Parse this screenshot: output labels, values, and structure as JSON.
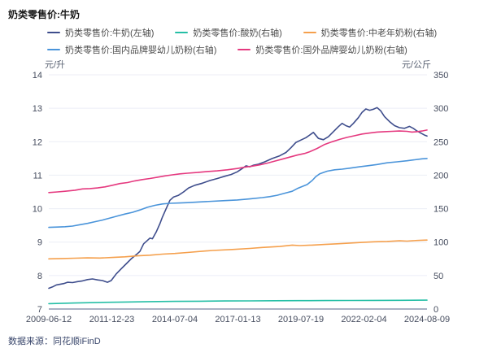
{
  "header": {
    "title": "奶类零售价:牛奶"
  },
  "footer": {
    "source": "数据来源：同花顺iFinD"
  },
  "colors": {
    "grid": "#eceef6",
    "axis_line": "#aab1c4",
    "tick_text": "#454c5e"
  },
  "chart_data": {
    "type": "line",
    "title": "奶类零售价:牛奶",
    "x_range": [
      2009.45,
      2024.6
    ],
    "x_tick_labels": [
      "2009-06-12",
      "2011-12-23",
      "2014-07-04",
      "2017-01-13",
      "2019-07-19",
      "2022-02-04",
      "2024-08-09"
    ],
    "left_axis": {
      "label": "元/升",
      "min": 7,
      "max": 14,
      "ticks": [
        14,
        13,
        12,
        11,
        10,
        9,
        8,
        7
      ]
    },
    "right_axis": {
      "label": "元/公斤",
      "min": 0,
      "max": 350,
      "ticks": [
        350,
        300,
        250,
        200,
        150,
        100,
        50,
        0
      ]
    },
    "grid": true,
    "legend_position": "top",
    "series": [
      {
        "name": "奶类零售价:牛奶(左轴)",
        "axis": "left",
        "color": "#3e4d8c",
        "points": [
          [
            2009.45,
            7.62
          ],
          [
            2009.6,
            7.66
          ],
          [
            2009.75,
            7.72
          ],
          [
            2009.9,
            7.74
          ],
          [
            2010.05,
            7.76
          ],
          [
            2010.2,
            7.8
          ],
          [
            2010.4,
            7.79
          ],
          [
            2010.6,
            7.82
          ],
          [
            2010.8,
            7.84
          ],
          [
            2011.0,
            7.88
          ],
          [
            2011.2,
            7.9
          ],
          [
            2011.4,
            7.87
          ],
          [
            2011.6,
            7.85
          ],
          [
            2011.8,
            7.8
          ],
          [
            2011.95,
            7.85
          ],
          [
            2012.15,
            8.05
          ],
          [
            2012.35,
            8.2
          ],
          [
            2012.55,
            8.35
          ],
          [
            2012.75,
            8.5
          ],
          [
            2012.95,
            8.62
          ],
          [
            2013.1,
            8.72
          ],
          [
            2013.25,
            8.95
          ],
          [
            2013.4,
            9.05
          ],
          [
            2013.5,
            9.12
          ],
          [
            2013.6,
            9.1
          ],
          [
            2013.75,
            9.3
          ],
          [
            2013.9,
            9.55
          ],
          [
            2014.0,
            9.75
          ],
          [
            2014.15,
            10.0
          ],
          [
            2014.3,
            10.25
          ],
          [
            2014.45,
            10.35
          ],
          [
            2014.65,
            10.4
          ],
          [
            2014.85,
            10.5
          ],
          [
            2015.05,
            10.62
          ],
          [
            2015.3,
            10.7
          ],
          [
            2015.6,
            10.76
          ],
          [
            2015.9,
            10.84
          ],
          [
            2016.2,
            10.9
          ],
          [
            2016.5,
            10.97
          ],
          [
            2016.75,
            11.02
          ],
          [
            2017.0,
            11.1
          ],
          [
            2017.2,
            11.2
          ],
          [
            2017.35,
            11.28
          ],
          [
            2017.5,
            11.25
          ],
          [
            2017.65,
            11.3
          ],
          [
            2017.85,
            11.33
          ],
          [
            2018.1,
            11.4
          ],
          [
            2018.4,
            11.5
          ],
          [
            2018.7,
            11.58
          ],
          [
            2018.95,
            11.68
          ],
          [
            2019.15,
            11.82
          ],
          [
            2019.35,
            11.98
          ],
          [
            2019.55,
            12.05
          ],
          [
            2019.75,
            12.12
          ],
          [
            2019.9,
            12.2
          ],
          [
            2020.05,
            12.28
          ],
          [
            2020.25,
            12.1
          ],
          [
            2020.45,
            12.06
          ],
          [
            2020.65,
            12.15
          ],
          [
            2020.85,
            12.3
          ],
          [
            2021.05,
            12.45
          ],
          [
            2021.2,
            12.55
          ],
          [
            2021.35,
            12.48
          ],
          [
            2021.5,
            12.44
          ],
          [
            2021.65,
            12.55
          ],
          [
            2021.85,
            12.72
          ],
          [
            2022.0,
            12.88
          ],
          [
            2022.15,
            12.98
          ],
          [
            2022.3,
            12.94
          ],
          [
            2022.45,
            12.97
          ],
          [
            2022.6,
            13.02
          ],
          [
            2022.75,
            12.92
          ],
          [
            2022.9,
            12.75
          ],
          [
            2023.1,
            12.6
          ],
          [
            2023.3,
            12.48
          ],
          [
            2023.5,
            12.42
          ],
          [
            2023.7,
            12.4
          ],
          [
            2023.9,
            12.46
          ],
          [
            2024.05,
            12.4
          ],
          [
            2024.2,
            12.32
          ],
          [
            2024.35,
            12.26
          ],
          [
            2024.5,
            12.2
          ],
          [
            2024.6,
            12.17
          ]
        ]
      },
      {
        "name": "奶类零售价:酸奶(右轴)",
        "axis": "right",
        "color": "#26bfa6",
        "points": [
          [
            2009.45,
            8.0
          ],
          [
            2010.5,
            9.0
          ],
          [
            2011.5,
            9.8
          ],
          [
            2012.5,
            10.4
          ],
          [
            2013.5,
            11.0
          ],
          [
            2014.5,
            11.4
          ],
          [
            2015.5,
            11.7
          ],
          [
            2016.5,
            12.0
          ],
          [
            2017.5,
            12.2
          ],
          [
            2018.5,
            12.4
          ],
          [
            2019.5,
            12.5
          ],
          [
            2020.5,
            12.6
          ],
          [
            2021.5,
            12.8
          ],
          [
            2022.5,
            12.9
          ],
          [
            2023.5,
            13.0
          ],
          [
            2024.6,
            13.2
          ]
        ]
      },
      {
        "name": "奶类零售价:中老年奶粉(右轴)",
        "axis": "right",
        "color": "#f5a04d",
        "points": [
          [
            2009.45,
            75.0
          ],
          [
            2010.0,
            75.5
          ],
          [
            2010.5,
            76.0
          ],
          [
            2011.0,
            76.5
          ],
          [
            2011.5,
            76.2
          ],
          [
            2012.0,
            77.0
          ],
          [
            2012.5,
            78.0
          ],
          [
            2013.0,
            79.5
          ],
          [
            2013.5,
            80.5
          ],
          [
            2014.0,
            82.0
          ],
          [
            2014.5,
            83.0
          ],
          [
            2015.0,
            84.5
          ],
          [
            2015.5,
            86.0
          ],
          [
            2016.0,
            87.5
          ],
          [
            2016.8,
            89.0
          ],
          [
            2017.5,
            90.5
          ],
          [
            2018.0,
            92.0
          ],
          [
            2018.7,
            93.5
          ],
          [
            2019.2,
            95.5
          ],
          [
            2019.5,
            94.8
          ],
          [
            2020.0,
            95.5
          ],
          [
            2020.5,
            96.5
          ],
          [
            2021.0,
            97.5
          ],
          [
            2021.5,
            98.5
          ],
          [
            2022.0,
            99.5
          ],
          [
            2022.5,
            100.5
          ],
          [
            2023.0,
            101.0
          ],
          [
            2023.5,
            102.0
          ],
          [
            2023.8,
            101.5
          ],
          [
            2024.2,
            102.5
          ],
          [
            2024.6,
            103.0
          ]
        ]
      },
      {
        "name": "奶类零售价:国内品牌婴幼儿奶粉(右轴)",
        "axis": "right",
        "color": "#4a94da",
        "points": [
          [
            2009.45,
            122.0
          ],
          [
            2009.8,
            122.5
          ],
          [
            2010.1,
            123.0
          ],
          [
            2010.4,
            124.0
          ],
          [
            2010.7,
            126.0
          ],
          [
            2011.0,
            128.0
          ],
          [
            2011.3,
            130.5
          ],
          [
            2011.6,
            133.0
          ],
          [
            2011.9,
            136.0
          ],
          [
            2012.2,
            139.0
          ],
          [
            2012.5,
            142.0
          ],
          [
            2012.8,
            144.5
          ],
          [
            2013.1,
            148.0
          ],
          [
            2013.4,
            152.0
          ],
          [
            2013.7,
            155.0
          ],
          [
            2014.0,
            157.0
          ],
          [
            2014.3,
            158.0
          ],
          [
            2014.7,
            158.5
          ],
          [
            2015.0,
            159.0
          ],
          [
            2015.5,
            160.0
          ],
          [
            2016.0,
            161.0
          ],
          [
            2016.5,
            162.0
          ],
          [
            2017.0,
            163.0
          ],
          [
            2017.5,
            164.5
          ],
          [
            2018.0,
            166.5
          ],
          [
            2018.3,
            168.0
          ],
          [
            2018.6,
            170.0
          ],
          [
            2018.9,
            173.0
          ],
          [
            2019.2,
            176.0
          ],
          [
            2019.4,
            180.0
          ],
          [
            2019.6,
            183.0
          ],
          [
            2019.8,
            186.0
          ],
          [
            2020.0,
            192.0
          ],
          [
            2020.15,
            198.0
          ],
          [
            2020.3,
            202.0
          ],
          [
            2020.6,
            206.0
          ],
          [
            2020.9,
            208.0
          ],
          [
            2021.2,
            209.0
          ],
          [
            2021.5,
            210.5
          ],
          [
            2021.9,
            212.5
          ],
          [
            2022.2,
            214.0
          ],
          [
            2022.6,
            216.0
          ],
          [
            2023.0,
            218.5
          ],
          [
            2023.4,
            220.0
          ],
          [
            2023.8,
            221.5
          ],
          [
            2024.1,
            223.0
          ],
          [
            2024.4,
            224.5
          ],
          [
            2024.6,
            225.0
          ]
        ]
      },
      {
        "name": "奶类零售价:国外品牌婴幼儿奶粉(右轴)",
        "axis": "right",
        "color": "#e5397f",
        "points": [
          [
            2009.45,
            174.0
          ],
          [
            2009.8,
            175.0
          ],
          [
            2010.1,
            176.0
          ],
          [
            2010.5,
            177.5
          ],
          [
            2010.8,
            179.5
          ],
          [
            2011.1,
            180.0
          ],
          [
            2011.4,
            181.0
          ],
          [
            2011.7,
            182.5
          ],
          [
            2012.0,
            185.0
          ],
          [
            2012.3,
            187.5
          ],
          [
            2012.6,
            189.0
          ],
          [
            2012.9,
            191.5
          ],
          [
            2013.2,
            193.5
          ],
          [
            2013.5,
            195.0
          ],
          [
            2013.8,
            197.0
          ],
          [
            2014.1,
            199.0
          ],
          [
            2014.4,
            200.5
          ],
          [
            2014.7,
            202.0
          ],
          [
            2015.0,
            203.0
          ],
          [
            2015.4,
            204.0
          ],
          [
            2015.8,
            205.5
          ],
          [
            2016.2,
            206.5
          ],
          [
            2016.6,
            208.0
          ],
          [
            2017.0,
            210.0
          ],
          [
            2017.3,
            212.0
          ],
          [
            2017.6,
            213.5
          ],
          [
            2017.9,
            215.5
          ],
          [
            2018.2,
            218.0
          ],
          [
            2018.5,
            221.0
          ],
          [
            2018.8,
            224.0
          ],
          [
            2019.1,
            227.0
          ],
          [
            2019.4,
            230.0
          ],
          [
            2019.7,
            232.5
          ],
          [
            2019.9,
            235.0
          ],
          [
            2020.2,
            240.0
          ],
          [
            2020.5,
            246.0
          ],
          [
            2020.8,
            250.0
          ],
          [
            2021.1,
            253.5
          ],
          [
            2021.4,
            256.5
          ],
          [
            2021.7,
            259.0
          ],
          [
            2022.0,
            261.5
          ],
          [
            2022.3,
            263.0
          ],
          [
            2022.6,
            264.5
          ],
          [
            2022.9,
            265.0
          ],
          [
            2023.2,
            265.5
          ],
          [
            2023.5,
            266.0
          ],
          [
            2023.8,
            265.5
          ],
          [
            2024.0,
            264.5
          ],
          [
            2024.2,
            265.0
          ],
          [
            2024.4,
            266.0
          ],
          [
            2024.6,
            267.5
          ]
        ]
      }
    ]
  }
}
